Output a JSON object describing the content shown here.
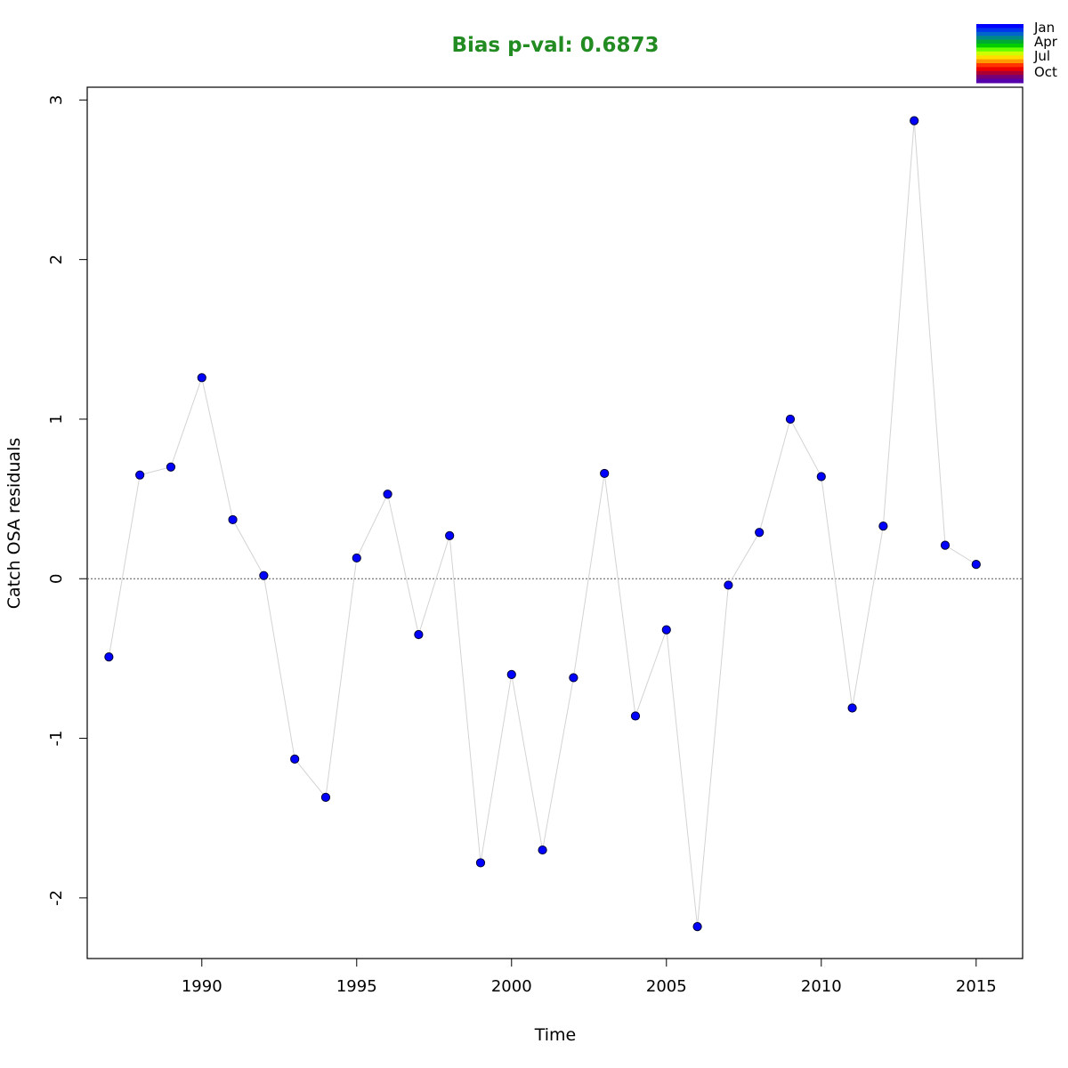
{
  "chart_data": {
    "type": "scatter",
    "title": "Bias p-val: 0.6873",
    "xlabel": "Time",
    "ylabel": "Catch OSA residuals",
    "xlim": [
      1986.3,
      2016.5
    ],
    "ylim": [
      -2.38,
      3.08
    ],
    "xticks": [
      1990,
      1995,
      2000,
      2005,
      2010,
      2015
    ],
    "yticks": [
      -2,
      -1,
      0,
      1,
      2,
      3
    ],
    "reference_line": 0,
    "series": [
      {
        "x": [
          1987,
          1988,
          1989,
          1990,
          1991,
          1992,
          1993,
          1994,
          1995,
          1996,
          1997,
          1998,
          1999,
          2000,
          2001,
          2002,
          2003,
          2004,
          2005,
          2006,
          2007,
          2008,
          2009,
          2010,
          2011,
          2012,
          2013,
          2014,
          2015
        ],
        "y": [
          -0.49,
          0.65,
          0.7,
          1.26,
          0.37,
          0.02,
          -1.13,
          -1.37,
          0.13,
          0.53,
          -0.35,
          0.27,
          -1.78,
          -0.6,
          -1.7,
          -0.62,
          0.66,
          -0.86,
          -0.32,
          -2.18,
          -0.04,
          0.29,
          1.0,
          0.64,
          -0.81,
          0.33,
          2.87,
          0.21,
          0.09
        ]
      }
    ],
    "legend": {
      "placement": "top-right",
      "labels": [
        "Jan",
        "Apr",
        "Jul",
        "Oct"
      ]
    }
  },
  "colors": {
    "title": "#228b22",
    "point_fill": "#0000ff",
    "point_stroke": "#000033",
    "line": "#d3d3d3",
    "ref_line": "#555555",
    "legend_colors": [
      "#0000ff",
      "#0033ee",
      "#0066cc",
      "#008888",
      "#00aa33",
      "#00cc00",
      "#66ff00",
      "#ccff00",
      "#ffdd00",
      "#ff9900",
      "#ff3300",
      "#ee0000",
      "#aa0033",
      "#770077",
      "#5500aa"
    ]
  }
}
